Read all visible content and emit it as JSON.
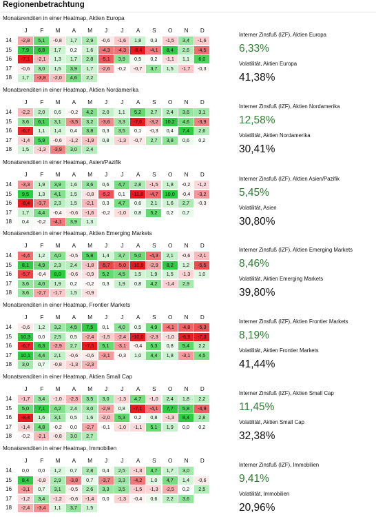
{
  "page": {
    "title": "Regionenbetrachtung",
    "months": [
      "J",
      "F",
      "M",
      "A",
      "M",
      "J",
      "J",
      "A",
      "S",
      "O",
      "N",
      "D"
    ],
    "years": [
      "14",
      "15",
      "16",
      "17",
      "18"
    ]
  },
  "colors": {
    "irr_value": "#2e7d32",
    "positive_max": "#2ecc40",
    "negative_max": "#e8191f",
    "neutral": "#ffffff"
  },
  "blocks": [
    {
      "subtitle": "Monatsrenditen in einer Heatmap, Aktien Europa",
      "irr_label": "Interner Zinsfuß (IZF), Aktien Europa",
      "irr_value": "6,33%",
      "vol_label": "Volatilität, Aktien Europa",
      "vol_value": "41,38%"
    },
    {
      "subtitle": "Monatsrenditen in einer Heatmap, Aktien Nordamerika",
      "irr_label": "Interner Zinsfuß (IZF), Aktien Nordamerika",
      "irr_value": "12,58%",
      "vol_label": "Volatilität, Aktien Nordamerika",
      "vol_value": "30,41%"
    },
    {
      "subtitle": "Monatsrenditen in einer Heatmap, Asien/Pazifik",
      "irr_label": "Interner Zinsfuß (IZF), Aktien Asien/Pazifik",
      "irr_value": "5,45%",
      "vol_label": "Volatilität, Asien",
      "vol_value": "30,80%"
    },
    {
      "subtitle": "Monatsrenditen in einer Heatmap, Aktien Emerging Markets",
      "irr_label": "Interner Zinsfuß (IZF), Aktien Emerging Markets",
      "irr_value": "8,46%",
      "vol_label": "Volatilität, Aktien Emerging Markets",
      "vol_value": "39,80%"
    },
    {
      "subtitle": "Monatsrenditen in einer Heatmap, Frontier Markets",
      "irr_label": "Interner Zinsfuß (IZF), Aktien Frontier Markets",
      "irr_value": "8,19%",
      "vol_label": "Volatilität, Aktien Frontier Markets",
      "vol_value": "41,44%"
    },
    {
      "subtitle": "Monatsrenditen in einer Heatmap, Aktien Small Cap",
      "irr_label": "Interner Zinsfuß (IZF), Aktien Small Cap",
      "irr_value": "11,45%",
      "vol_label": "Volatilität, Aktien Small Cap",
      "vol_value": "32,38%"
    },
    {
      "subtitle": "Monatsrenditen in einer Heatmap, Immobilien",
      "irr_label": "Interner Zinsfuß (IZF), Immobilien",
      "irr_value": "9,41%",
      "vol_label": "Volatilität, Immobilien",
      "vol_value": "20,96%"
    }
  ],
  "chart_data": [
    {
      "type": "heatmap",
      "title": "Monatsrenditen in einer Heatmap, Aktien Europa",
      "rows": [
        "14",
        "15",
        "16",
        "17",
        "18"
      ],
      "columns": [
        "J",
        "F",
        "M",
        "A",
        "M",
        "J",
        "J",
        "A",
        "S",
        "O",
        "N",
        "D"
      ],
      "values": [
        [
          "-2,8",
          "5,1",
          "-0,8",
          "1,7",
          "2,9",
          "-0,6",
          "-1,6",
          "1,8",
          "0,3",
          "-1,5",
          "3,4",
          "-1,6"
        ],
        [
          "7,9",
          "6,8",
          "1,7",
          "0,2",
          "1,6",
          "-4,3",
          "-4,3",
          "-8,4",
          "-4,1",
          "8,4",
          "2,6",
          "-4,5"
        ],
        [
          "-7,1",
          "-2,1",
          "1,3",
          "1,7",
          "2,8",
          "-5,1",
          "3,9",
          "0,5",
          "0,2",
          "-1,1",
          "1,1",
          "6,0"
        ],
        [
          "-0,6",
          "3,0",
          "1,5",
          "3,9",
          "1,7",
          "-2,6",
          "-0,2",
          "-0,7",
          "3,7",
          "1,5",
          "-1,7",
          "-0,3"
        ],
        [
          "1,7",
          "-3,8",
          "-2,0",
          "4,6",
          "2,2",
          "",
          "",
          "",
          "",
          "",
          "",
          ""
        ]
      ]
    },
    {
      "type": "heatmap",
      "title": "Monatsrenditen in einer Heatmap, Aktien Nordamerika",
      "rows": [
        "14",
        "15",
        "16",
        "17",
        "18"
      ],
      "columns": [
        "J",
        "F",
        "M",
        "A",
        "M",
        "J",
        "J",
        "A",
        "S",
        "O",
        "N",
        "D"
      ],
      "values": [
        [
          "-2,2",
          "2,0",
          "0,6",
          "-0,2",
          "4,2",
          "2,0",
          "1,1",
          "5,2",
          "2,7",
          "2,4",
          "3,6",
          "3,1"
        ],
        [
          "3,6",
          "6,1",
          "3,1",
          "-3,5",
          "3,2",
          "-3,6",
          "3,3",
          "-7,6",
          "-3,2",
          "10,2",
          "4,6",
          "-3,9"
        ],
        [
          "-6,7",
          "1,1",
          "1,4",
          "0,4",
          "3,8",
          "0,3",
          "3,5",
          "0,1",
          "-0,3",
          "0,4",
          "7,4",
          "2,6"
        ],
        [
          "-1,4",
          "5,9",
          "-0,6",
          "-1,2",
          "-1,9",
          "0,8",
          "-1,3",
          "-0,7",
          "2,7",
          "3,8",
          "0,6",
          "0,2"
        ],
        [
          "1,5",
          "-1,3",
          "-3,9",
          "3,0",
          "2,4",
          "",
          "",
          "",
          "",
          "",
          "",
          ""
        ]
      ]
    },
    {
      "type": "heatmap",
      "title": "Monatsrenditen in einer Heatmap, Asien/Pazifik",
      "rows": [
        "14",
        "15",
        "16",
        "17",
        "18"
      ],
      "columns": [
        "J",
        "F",
        "M",
        "A",
        "M",
        "J",
        "J",
        "A",
        "S",
        "O",
        "N",
        "D"
      ],
      "values": [
        [
          "-3,3",
          "1,9",
          "3,9",
          "1,6",
          "3,6",
          "0,6",
          "4,7",
          "2,8",
          "-1,5",
          "1,8",
          "-0,2",
          "-1,2"
        ],
        [
          "9,5",
          "1,3",
          "4,1",
          "1,5",
          "-0,8",
          "-5,2",
          "0,1",
          "-11,8",
          "-4,7",
          "10,0",
          "-0,4",
          "-3,2"
        ],
        [
          "-8,4",
          "-3,7",
          "2,3",
          "1,5",
          "-2,1",
          "0,3",
          "4,7",
          "0,6",
          "2,1",
          "1,6",
          "2,7",
          "-0,3"
        ],
        [
          "1,7",
          "4,4",
          "-0,4",
          "-0,6",
          "-1,6",
          "-0,2",
          "-1,0",
          "0,8",
          "5,2",
          "0,2",
          "0,7",
          ""
        ],
        [
          "0,4",
          "-0,2",
          "-4,1",
          "3,9",
          "1,3",
          "",
          "",
          "",
          "",
          "",
          "",
          ""
        ]
      ]
    },
    {
      "type": "heatmap",
      "title": "Monatsrenditen in einer Heatmap, Aktien Emerging Markets",
      "rows": [
        "14",
        "15",
        "16",
        "17",
        "18"
      ],
      "columns": [
        "J",
        "F",
        "M",
        "A",
        "M",
        "J",
        "J",
        "A",
        "S",
        "O",
        "N",
        "D"
      ],
      "values": [
        [
          "-4,4",
          "1,2",
          "4,0",
          "-0,5",
          "5,8",
          "1,4",
          "3,7",
          "5,0",
          "-4,3",
          "2,1",
          "-0,6",
          "-2,1"
        ],
        [
          "8,1",
          "4,9",
          "2,3",
          "2,4",
          "-1,8",
          "-5,7",
          "-5,0",
          "-10,5",
          "-2,9",
          "8,2",
          "1,2",
          "-5,5"
        ],
        [
          "-5,7",
          "-0,4",
          "8,0",
          "-0,6",
          "-0,9",
          "5,2",
          "4,5",
          "1,5",
          "1,9",
          "1,5",
          "-1,3",
          "1,0"
        ],
        [
          "3,6",
          "4,0",
          "1,9",
          "0,2",
          "-0,2",
          "0,3",
          "1,9",
          "0,8",
          "4,2",
          "-1,4",
          "2,9",
          ""
        ],
        [
          "3,6",
          "-2,7",
          "-1,7",
          "1,5",
          "-0,9",
          "",
          "",
          "",
          "",
          "",
          "",
          ""
        ]
      ]
    },
    {
      "type": "heatmap",
      "title": "Monatsrenditen in einer Heatmap, Frontier Markets",
      "rows": [
        "14",
        "15",
        "16",
        "17",
        "18"
      ],
      "columns": [
        "J",
        "F",
        "M",
        "A",
        "M",
        "J",
        "J",
        "A",
        "S",
        "O",
        "N",
        "D"
      ],
      "values": [
        [
          "-0,6",
          "1,2",
          "3,2",
          "4,5",
          "7,5",
          "0,1",
          "4,0",
          "0,5",
          "4,9",
          "-4,1",
          "-4,8",
          "-5,3"
        ],
        [
          "10,3",
          "0,0",
          "2,5",
          "0,5",
          "-2,4",
          "-1,5",
          "-2,4",
          "-10,0",
          "-2,3",
          "-1,0",
          "-6,9",
          "-7,3"
        ],
        [
          "-6,7",
          "6,3",
          "-2,9",
          "2,7",
          "-7,5",
          "5,1",
          "-3,1",
          "-0,4",
          "5,3",
          "0,8",
          "5,4",
          "2,2"
        ],
        [
          "10,1",
          "4,4",
          "2,1",
          "-0,6",
          "-0,6",
          "-3,1",
          "-0,3",
          "1,0",
          "4,4",
          "1,8",
          "-3,1",
          "4,5"
        ],
        [
          "3,0",
          "0,7",
          "-0,8",
          "-1,3",
          "-2,3",
          "",
          "",
          "",
          "",
          "",
          "",
          ""
        ]
      ]
    },
    {
      "type": "heatmap",
      "title": "Monatsrenditen in einer Heatmap, Aktien Small Cap",
      "rows": [
        "14",
        "15",
        "16",
        "17",
        "18"
      ],
      "columns": [
        "J",
        "F",
        "M",
        "A",
        "M",
        "J",
        "J",
        "A",
        "S",
        "O",
        "N",
        "D"
      ],
      "values": [
        [
          "-1,7",
          "3,4",
          "-1,0",
          "-2,3",
          "3,5",
          "3,0",
          "-1,3",
          "4,7",
          "-1,0",
          "2,4",
          "1,8",
          "2,2"
        ],
        [
          "5,0",
          "7,1",
          "4,2",
          "2,4",
          "3,0",
          "-2,9",
          "0,8",
          "-7,1",
          "-4,1",
          "7,7",
          "5,8",
          "-4,9"
        ],
        [
          "-8,4",
          "1,6",
          "3,1",
          "0,5",
          "1,6",
          "-2,0",
          "5,3",
          "0,2",
          "0,8",
          "-1,3",
          "8,4",
          "2,8"
        ],
        [
          "-1,4",
          "4,8",
          "-0,2",
          "0,0",
          "-2,7",
          "-0,1",
          "-1,0",
          "-1,1",
          "5,1",
          "1,9",
          "0,0",
          "0,2"
        ],
        [
          "-0,2",
          "-2,1",
          "-0,8",
          "3,0",
          "2,7",
          "",
          "",
          "",
          "",
          "",
          "",
          ""
        ]
      ]
    },
    {
      "type": "heatmap",
      "title": "Monatsrenditen in einer Heatmap, Immobilien",
      "rows": [
        "14",
        "15",
        "16",
        "17",
        "18"
      ],
      "columns": [
        "J",
        "F",
        "M",
        "A",
        "M",
        "J",
        "J",
        "A",
        "S",
        "O",
        "N",
        "D"
      ],
      "values": [
        [
          "0,0",
          "0,0",
          "1,2",
          "0,7",
          "2,8",
          "0,4",
          "2,5",
          "-1,3",
          "4,7",
          "1,7",
          "3,0",
          ""
        ],
        [
          "8,4",
          "-0,8",
          "2,9",
          "-3,8",
          "0,7",
          "-3,7",
          "3,3",
          "-4,2",
          "1,0",
          "4,7",
          "1,4",
          "-0,6"
        ],
        [
          "-3,1",
          "0,7",
          "3,1",
          "-0,5",
          "2,6",
          "3,3",
          "3,5",
          "-1,5",
          "-1,3",
          "-2,5",
          "0,2",
          "2,5"
        ],
        [
          "-1,2",
          "3,4",
          "-1,2",
          "-0,6",
          "-1,4",
          "0,0",
          "-1,3",
          "-0,4",
          "0,6",
          "2,2",
          "3,6",
          ""
        ],
        [
          "-2,4",
          "-3,4",
          "1,1",
          "3,7",
          "1,5",
          "",
          "",
          "",
          "",
          "",
          "",
          ""
        ]
      ]
    }
  ]
}
